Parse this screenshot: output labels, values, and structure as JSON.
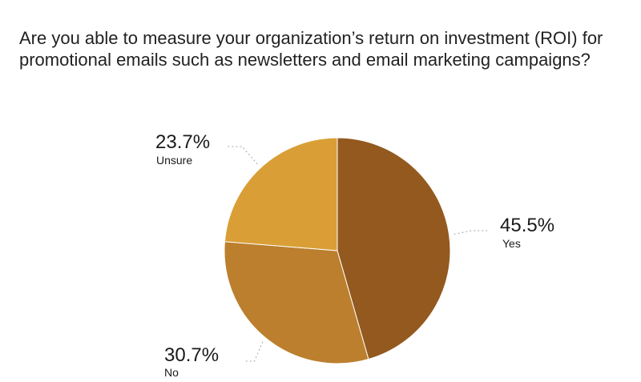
{
  "chart_data": {
    "type": "pie",
    "title": "Are you able to measure your organization’s return on investment (ROI) for promotional emails such as newsletters and email marketing campaigns?",
    "slices": [
      {
        "label": "Yes",
        "value": 45.5,
        "value_label": "45.5%",
        "color": "#94591f"
      },
      {
        "label": "No",
        "value": 30.7,
        "value_label": "30.7%",
        "color": "#bb7f2e"
      },
      {
        "label": "Unsure",
        "value": 23.7,
        "value_label": "23.7%",
        "color": "#d99f36"
      }
    ],
    "start_angle_deg": 0,
    "direction": "clockwise",
    "legend": "none"
  }
}
